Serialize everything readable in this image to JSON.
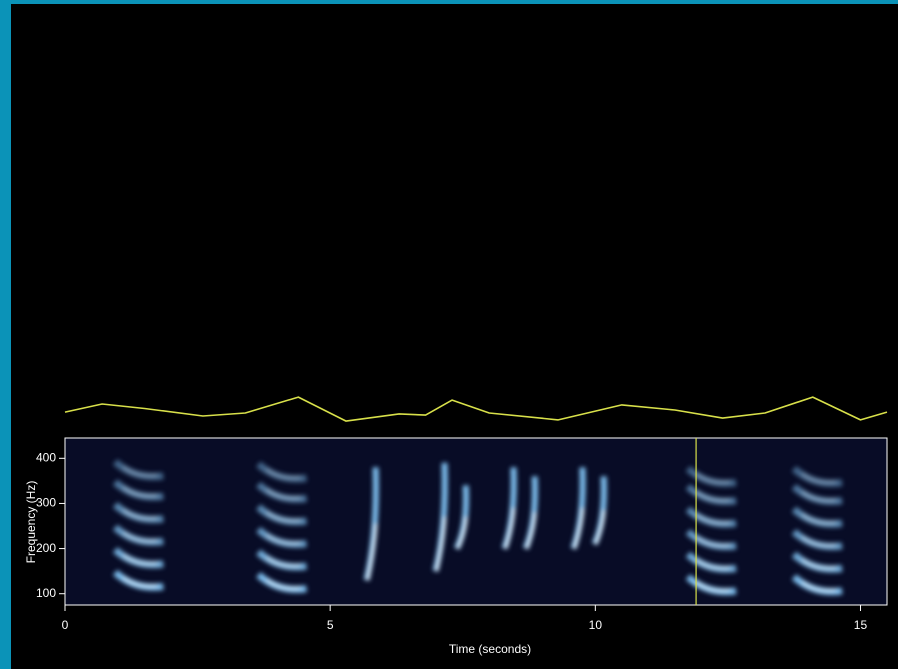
{
  "chart_data": {
    "type": "spectrogram",
    "x_label": "Time (seconds)",
    "y_label": "Frequency (Hz)",
    "xlim": [
      0,
      15.5
    ],
    "xticks": [
      0,
      5,
      10,
      15
    ],
    "ylim": [
      75,
      445
    ],
    "yticks": [
      100,
      200,
      300,
      400
    ],
    "cursor_time": 11.9,
    "cursor_color": "#d8e04a",
    "trace": {
      "color": "#d8e04a",
      "x": [
        0,
        0.7,
        1.5,
        2.6,
        3.4,
        4.4,
        5.3,
        6.3,
        6.8,
        7.3,
        8.0,
        9.3,
        10.5,
        11.5,
        12.4,
        13.2,
        14.1,
        15.0,
        15.5
      ],
      "values": [
        0.43,
        0.7,
        0.55,
        0.3,
        0.4,
        0.93,
        0.13,
        0.37,
        0.33,
        0.83,
        0.4,
        0.17,
        0.67,
        0.5,
        0.23,
        0.4,
        0.93,
        0.17,
        0.43
      ]
    },
    "calls": [
      {
        "t": 1.4,
        "harmonics": [
          125,
          175,
          225,
          275,
          325,
          370
        ]
      },
      {
        "t": 4.1,
        "harmonics": [
          120,
          170,
          220,
          270,
          320,
          365
        ]
      },
      {
        "t": 12.2,
        "harmonics": [
          115,
          165,
          215,
          265,
          315,
          355
        ]
      },
      {
        "t": 14.2,
        "harmonics": [
          115,
          165,
          215,
          265,
          315,
          355
        ]
      }
    ],
    "sweeps": [
      {
        "t": 5.8,
        "f0": 130,
        "f1": 380
      },
      {
        "t": 7.1,
        "f0": 150,
        "f1": 390
      },
      {
        "t": 7.5,
        "f0": 200,
        "f1": 340
      },
      {
        "t": 8.4,
        "f0": 200,
        "f1": 380
      },
      {
        "t": 8.8,
        "f0": 200,
        "f1": 360
      },
      {
        "t": 9.7,
        "f0": 200,
        "f1": 380
      },
      {
        "t": 10.1,
        "f0": 210,
        "f1": 360
      }
    ],
    "color": "#7ec0f0"
  }
}
